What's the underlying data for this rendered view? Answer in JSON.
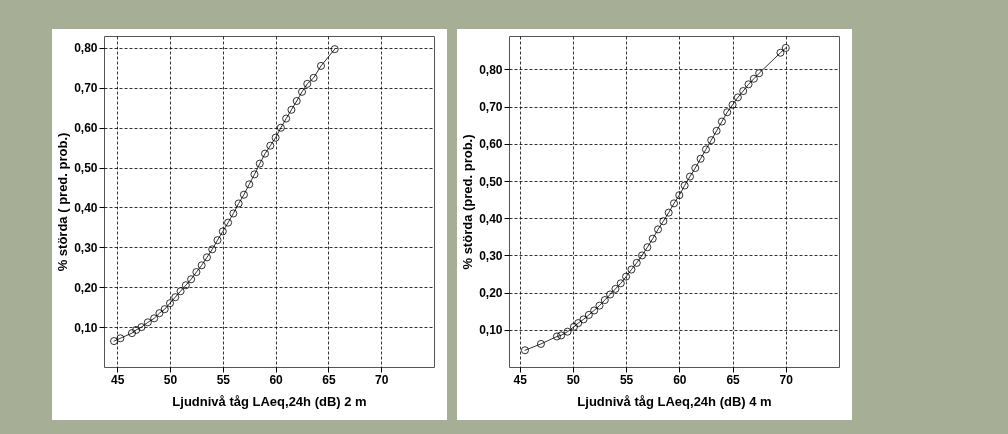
{
  "chart_data": [
    {
      "type": "line",
      "xlabel": "Ljudnivå tåg LAeq,24h (dB) 2 m",
      "ylabel": "% störda ( pred. prob.)",
      "xlim": [
        43.75,
        75
      ],
      "ylim": [
        0,
        0.83
      ],
      "xticks": [
        45,
        50,
        55,
        60,
        65,
        70
      ],
      "yticks": [
        {
          "value": 0.1,
          "label": "0,10"
        },
        {
          "value": 0.2,
          "label": "0,20"
        },
        {
          "value": 0.3,
          "label": "0,30"
        },
        {
          "value": 0.4,
          "label": "0,40"
        },
        {
          "value": 0.5,
          "label": "0,50"
        },
        {
          "value": 0.6,
          "label": "0,60"
        },
        {
          "value": 0.7,
          "label": "0,70"
        },
        {
          "value": 0.8,
          "label": "0,80"
        }
      ],
      "grid": true,
      "marker": "circle",
      "line_style": "solid",
      "series": [
        {
          "color": "#000000",
          "x": [
            44.7,
            45.3,
            46.4,
            46.8,
            47.3,
            47.9,
            48.5,
            49,
            49.5,
            50,
            50.5,
            51,
            51.5,
            52,
            52.5,
            53,
            53.5,
            54,
            54.5,
            55,
            55.5,
            56,
            56.5,
            57,
            57.5,
            58,
            58.5,
            59,
            59.5,
            60,
            60.5,
            61,
            61.5,
            62,
            62.5,
            63,
            63.6,
            64.3,
            65.6
          ],
          "values": [
            0.065,
            0.072,
            0.085,
            0.093,
            0.1,
            0.112,
            0.122,
            0.135,
            0.145,
            0.16,
            0.175,
            0.19,
            0.205,
            0.22,
            0.238,
            0.255,
            0.275,
            0.295,
            0.318,
            0.34,
            0.362,
            0.385,
            0.41,
            0.432,
            0.458,
            0.483,
            0.51,
            0.535,
            0.555,
            0.575,
            0.6,
            0.623,
            0.645,
            0.667,
            0.69,
            0.71,
            0.725,
            0.755,
            0.797
          ]
        }
      ]
    },
    {
      "type": "line",
      "xlabel": "Ljudnivå tåg LAeq,24h (dB) 4 m",
      "ylabel": "% störda (pred. prob.)",
      "xlim": [
        44,
        75
      ],
      "ylim": [
        0,
        0.89
      ],
      "xticks": [
        45,
        50,
        55,
        60,
        65,
        70
      ],
      "yticks": [
        {
          "value": 0.1,
          "label": "0,10"
        },
        {
          "value": 0.2,
          "label": "0,20"
        },
        {
          "value": 0.3,
          "label": "0,30"
        },
        {
          "value": 0.4,
          "label": "0,40"
        },
        {
          "value": 0.5,
          "label": "0,50"
        },
        {
          "value": 0.6,
          "label": "0,60"
        },
        {
          "value": 0.7,
          "label": "0,70"
        },
        {
          "value": 0.8,
          "label": "0,80"
        }
      ],
      "grid": true,
      "marker": "circle",
      "line_style": "solid",
      "series": [
        {
          "color": "#000000",
          "x": [
            45.5,
            47,
            48.5,
            48.9,
            49.5,
            50.1,
            50.5,
            51,
            51.5,
            52,
            52.5,
            53,
            53.5,
            54,
            54.5,
            55,
            55.5,
            56,
            56.5,
            57,
            57.5,
            58,
            58.5,
            59,
            59.5,
            60,
            60.5,
            61,
            61.5,
            62,
            62.5,
            63,
            63.5,
            64,
            64.5,
            65,
            65.5,
            66,
            66.5,
            67,
            67.5,
            69.5,
            70
          ],
          "values": [
            0.045,
            0.062,
            0.082,
            0.085,
            0.095,
            0.108,
            0.118,
            0.128,
            0.14,
            0.152,
            0.165,
            0.18,
            0.195,
            0.21,
            0.225,
            0.243,
            0.262,
            0.28,
            0.3,
            0.322,
            0.345,
            0.37,
            0.392,
            0.415,
            0.44,
            0.462,
            0.488,
            0.512,
            0.535,
            0.56,
            0.585,
            0.61,
            0.635,
            0.66,
            0.685,
            0.705,
            0.725,
            0.742,
            0.76,
            0.775,
            0.79,
            0.845,
            0.858
          ]
        }
      ]
    }
  ]
}
